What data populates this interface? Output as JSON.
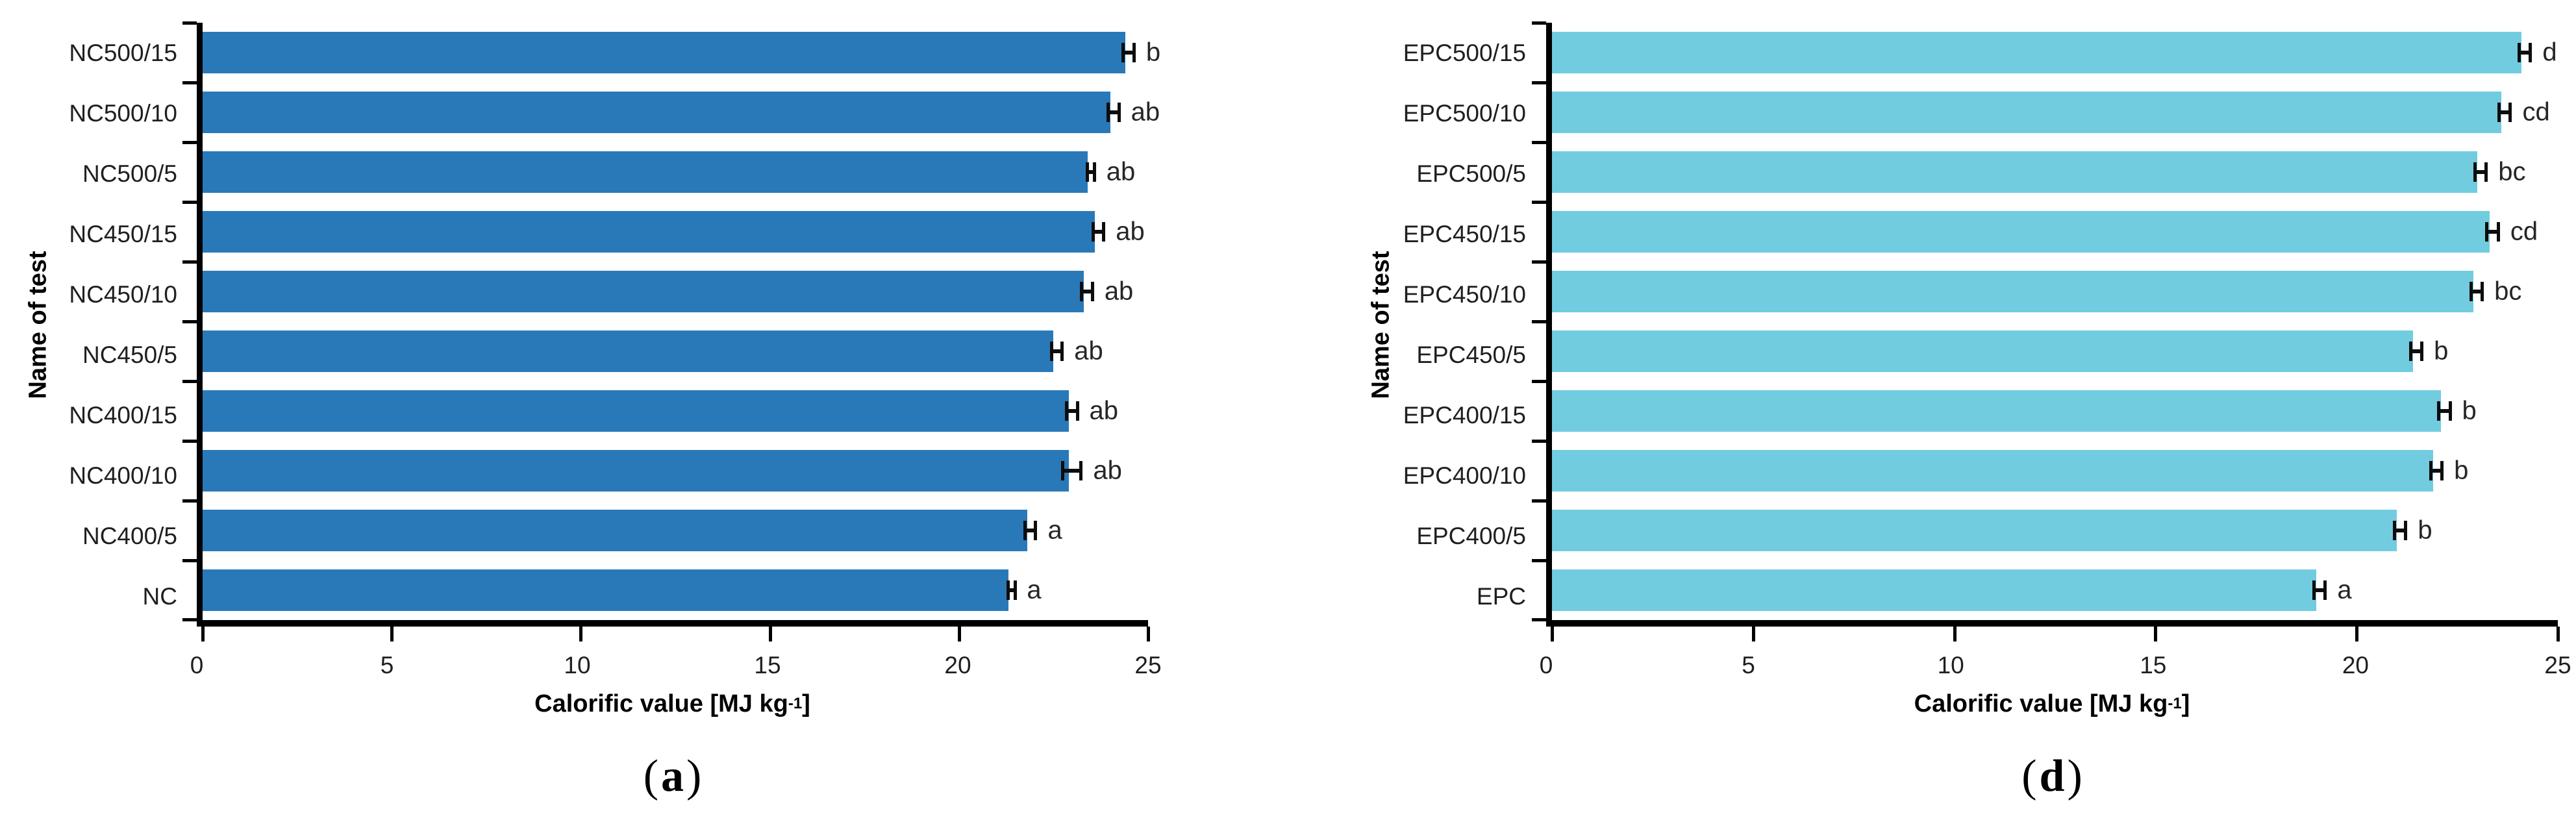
{
  "figure": {
    "description": "Two horizontal bar chart panels comparing calorific value of torrefied samples",
    "axis_color": "#000000",
    "error_bar_color": "#0d0d0d"
  },
  "chart_data": [
    {
      "type": "bar",
      "orientation": "horizontal",
      "caption": {
        "open": "(",
        "letter": "a",
        "close": ")"
      },
      "ylabel": "Name of test",
      "xlabel_parts": {
        "main": "Calorific value [MJ kg",
        "sup": "-1",
        "close": "]"
      },
      "xlim": [
        0,
        25
      ],
      "xticks": [
        0,
        5,
        10,
        15,
        20,
        25
      ],
      "grid": false,
      "legend": false,
      "bar_color": "#2979b9",
      "categories": [
        "NC500/15",
        "NC500/10",
        "NC500/5",
        "NC450/15",
        "NC450/10",
        "NC450/5",
        "NC400/15",
        "NC400/10",
        "NC400/5",
        "NC"
      ],
      "values": [
        24.4,
        24.0,
        23.4,
        23.6,
        23.3,
        22.5,
        22.9,
        22.9,
        21.8,
        21.3
      ],
      "errors": [
        0.1,
        0.1,
        0.05,
        0.1,
        0.1,
        0.1,
        0.1,
        0.2,
        0.1,
        0.05
      ],
      "sig_letters": [
        "b",
        "ab",
        "ab",
        "ab",
        "ab",
        "ab",
        "ab",
        "ab",
        "a",
        "a"
      ]
    },
    {
      "type": "bar",
      "orientation": "horizontal",
      "caption": {
        "open": "(",
        "letter": "d",
        "close": ")"
      },
      "ylabel": "Name of test",
      "xlabel_parts": {
        "main": "Calorific value [MJ kg",
        "sup": "-1",
        "close": "]"
      },
      "xlim": [
        0,
        25
      ],
      "xticks": [
        0,
        5,
        10,
        15,
        20,
        25
      ],
      "grid": false,
      "legend": false,
      "bar_color": "#72cce0",
      "categories": [
        "EPC500/15",
        "EPC500/10",
        "EPC500/5",
        "EPC450/15",
        "EPC450/10",
        "EPC450/5",
        "EPC400/15",
        "EPC400/10",
        "EPC400/5",
        "EPC"
      ],
      "values": [
        24.1,
        23.6,
        23.0,
        23.3,
        22.9,
        21.4,
        22.1,
        21.9,
        21.0,
        19.0
      ],
      "errors": [
        0.1,
        0.1,
        0.1,
        0.1,
        0.1,
        0.1,
        0.1,
        0.1,
        0.1,
        0.1
      ],
      "sig_letters": [
        "d",
        "cd",
        "bc",
        "cd",
        "bc",
        "b",
        "b",
        "b",
        "b",
        "a"
      ]
    }
  ]
}
